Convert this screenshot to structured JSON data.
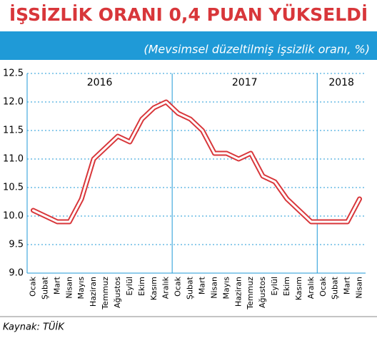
{
  "chart_data": {
    "type": "line",
    "title": "İŞSİZLİK ORANI 0,4 PUAN YÜKSELDİ",
    "subtitle": "(Mevsimsel düzeltilmiş işsizlik oranı, %)",
    "source": "Kaynak: TÜİK",
    "years": [
      "2016",
      "2017",
      "2018"
    ],
    "categories": [
      "Ocak",
      "Şubat",
      "Mart",
      "Nisan",
      "Mayıs",
      "Haziran",
      "Temmuz",
      "Ağustos",
      "Eylül",
      "Ekim",
      "Kasım",
      "Aralık",
      "Ocak",
      "Şubat",
      "Mart",
      "Nisan",
      "Mayıs",
      "Haziran",
      "Temmuz",
      "Ağustos",
      "Eylül",
      "Ekim",
      "Kasım",
      "Aralık",
      "Ocak",
      "Şubat",
      "Mart",
      "Nisan"
    ],
    "values": [
      10.1,
      10.0,
      9.9,
      9.9,
      10.3,
      11.0,
      11.2,
      11.4,
      11.3,
      11.7,
      11.9,
      12.0,
      11.8,
      11.7,
      11.5,
      11.1,
      11.1,
      11.0,
      11.1,
      10.7,
      10.6,
      10.3,
      10.1,
      9.9,
      9.9,
      9.9,
      9.9,
      10.3
    ],
    "color": "#d8363a",
    "ylim": [
      9.0,
      12.5
    ],
    "yticks": [
      {
        "value": 9.0,
        "label": "9.0"
      },
      9.5,
      {
        "value": 10.0,
        "label": "10.0"
      },
      10.5,
      {
        "value": 11.0,
        "label": "11.0"
      },
      11.5,
      {
        "value": 12.0,
        "label": "12.0"
      },
      12.5
    ],
    "grid": true
  }
}
